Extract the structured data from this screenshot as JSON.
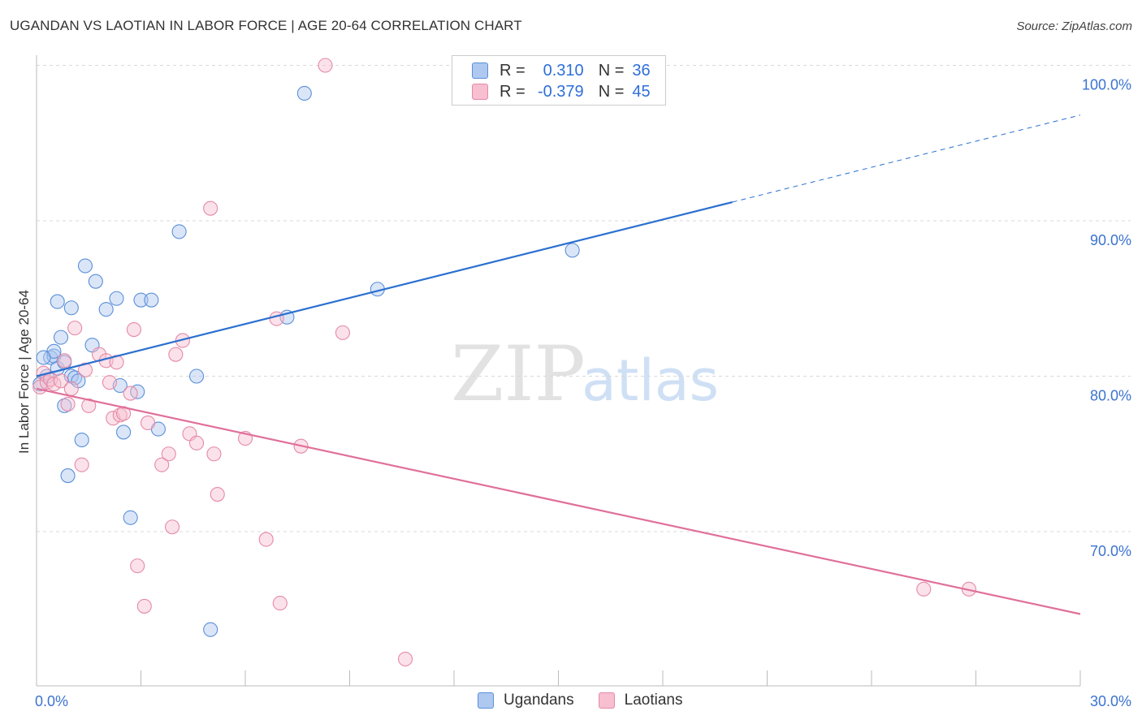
{
  "title": "UGANDAN VS LAOTIAN IN LABOR FORCE | AGE 20-64 CORRELATION CHART",
  "source": "Source: ZipAtlas.com",
  "watermark": {
    "zip": "ZIP",
    "atlas": "atlas"
  },
  "legend": {
    "r_label": "R =",
    "n_label": "N =",
    "rows": [
      {
        "r": "0.310",
        "n": "36",
        "fill": "#aec8f0",
        "stroke": "#5b8fd9"
      },
      {
        "r": "-0.379",
        "n": "45",
        "fill": "#f7bfd0",
        "stroke": "#e58aa6"
      }
    ]
  },
  "bottom_legend": [
    {
      "label": "Ugandans",
      "fill": "#aec8f0",
      "stroke": "#5b8fd9"
    },
    {
      "label": "Laotians",
      "fill": "#f7bfd0",
      "stroke": "#e58aa6"
    }
  ],
  "chart_data": {
    "type": "scatter",
    "title": "UGANDAN VS LAOTIAN IN LABOR FORCE | AGE 20-64 CORRELATION CHART",
    "xlabel": "",
    "ylabel": "In Labor Force | Age 20-64",
    "xlim": [
      0,
      30
    ],
    "ylim": [
      60.5,
      101
    ],
    "x_tick_labels": [
      {
        "value": 0,
        "label": "0.0%"
      },
      {
        "value": 30,
        "label": "30.0%"
      }
    ],
    "y_tick_labels": [
      {
        "value": 70,
        "label": "70.0%"
      },
      {
        "value": 80,
        "label": "80.0%"
      },
      {
        "value": 90,
        "label": "90.0%"
      },
      {
        "value": 100,
        "label": "100.0%"
      }
    ],
    "series": [
      {
        "name": "Ugandans",
        "color": "#5b8fd9",
        "fill": "#aec8f0",
        "trend": {
          "x0": 0,
          "y0": 80.0,
          "x1": 20,
          "y1": 91.2,
          "x_dash_end": 30,
          "y_dash_end": 96.8,
          "color": "#2a6fd0"
        },
        "points": [
          [
            0.1,
            79.5
          ],
          [
            0.3,
            80.0
          ],
          [
            0.4,
            81.2
          ],
          [
            0.5,
            81.3
          ],
          [
            0.5,
            81.6
          ],
          [
            0.6,
            80.5
          ],
          [
            0.6,
            84.8
          ],
          [
            0.7,
            82.5
          ],
          [
            0.8,
            80.9
          ],
          [
            0.8,
            78.1
          ],
          [
            1.0,
            84.4
          ],
          [
            1.0,
            80.0
          ],
          [
            1.1,
            79.9
          ],
          [
            1.2,
            79.7
          ],
          [
            1.3,
            75.9
          ],
          [
            1.4,
            87.1
          ],
          [
            1.6,
            82.0
          ],
          [
            1.7,
            86.1
          ],
          [
            2.0,
            84.3
          ],
          [
            2.3,
            85.0
          ],
          [
            2.4,
            79.4
          ],
          [
            2.5,
            76.4
          ],
          [
            2.7,
            70.9
          ],
          [
            2.9,
            79.0
          ],
          [
            3.0,
            84.9
          ],
          [
            3.3,
            84.9
          ],
          [
            3.5,
            76.6
          ],
          [
            4.1,
            89.3
          ],
          [
            4.6,
            80.0
          ],
          [
            5.0,
            63.7
          ],
          [
            7.2,
            83.8
          ],
          [
            7.7,
            98.2
          ],
          [
            9.8,
            85.6
          ],
          [
            15.4,
            88.1
          ],
          [
            0.9,
            73.6
          ],
          [
            0.2,
            81.2
          ]
        ]
      },
      {
        "name": "Laotians",
        "color": "#e58aa6",
        "fill": "#f7bfd0",
        "trend": {
          "x0": 0,
          "y0": 79.2,
          "x1": 30,
          "y1": 64.7,
          "color": "#e0709a"
        },
        "points": [
          [
            0.1,
            79.3
          ],
          [
            0.2,
            80.2
          ],
          [
            0.3,
            79.6
          ],
          [
            0.4,
            79.8
          ],
          [
            0.5,
            79.5
          ],
          [
            0.7,
            79.7
          ],
          [
            0.8,
            81.0
          ],
          [
            0.9,
            78.2
          ],
          [
            1.0,
            79.2
          ],
          [
            1.1,
            83.1
          ],
          [
            1.3,
            74.3
          ],
          [
            1.4,
            80.4
          ],
          [
            1.5,
            78.1
          ],
          [
            1.8,
            81.4
          ],
          [
            2.0,
            81.0
          ],
          [
            2.1,
            79.6
          ],
          [
            2.2,
            77.3
          ],
          [
            2.3,
            80.9
          ],
          [
            2.4,
            77.5
          ],
          [
            2.5,
            77.6
          ],
          [
            2.7,
            78.9
          ],
          [
            2.8,
            83.0
          ],
          [
            2.9,
            67.8
          ],
          [
            3.1,
            65.2
          ],
          [
            3.2,
            77.0
          ],
          [
            3.6,
            74.3
          ],
          [
            3.8,
            75.0
          ],
          [
            3.9,
            70.3
          ],
          [
            4.0,
            81.4
          ],
          [
            4.2,
            82.3
          ],
          [
            4.4,
            76.3
          ],
          [
            4.6,
            75.7
          ],
          [
            5.0,
            90.8
          ],
          [
            5.1,
            75.0
          ],
          [
            5.2,
            72.4
          ],
          [
            6.0,
            76.0
          ],
          [
            6.6,
            69.5
          ],
          [
            6.9,
            83.7
          ],
          [
            7.0,
            65.4
          ],
          [
            7.6,
            75.5
          ],
          [
            8.3,
            100.0
          ],
          [
            8.8,
            82.8
          ],
          [
            10.6,
            61.8
          ],
          [
            25.5,
            66.3
          ],
          [
            26.8,
            66.3
          ]
        ]
      }
    ]
  }
}
